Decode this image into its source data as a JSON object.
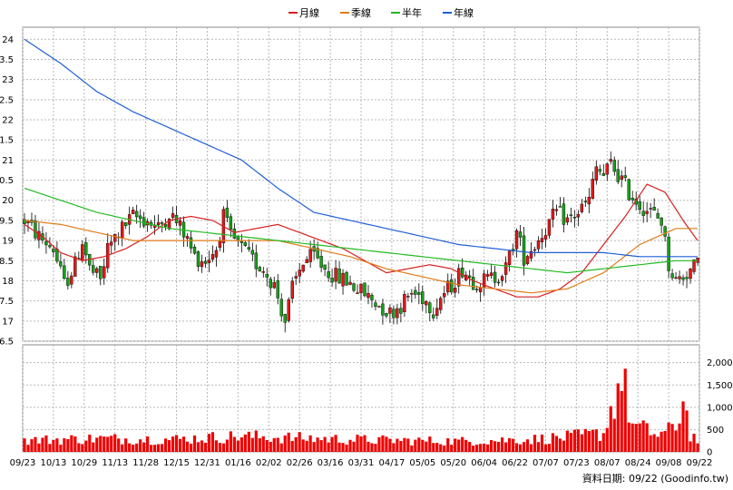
{
  "chart_data": {
    "type": "candlestick-with-volume",
    "legend": {
      "placement": "top-center",
      "items": [
        {
          "label": "月線",
          "color": "#d62020"
        },
        {
          "label": "季線",
          "color": "#e07b1a"
        },
        {
          "label": "半年",
          "color": "#22bb22"
        },
        {
          "label": "年線",
          "color": "#1f5fd6"
        }
      ]
    },
    "price_axis": {
      "tick_labels": [
        "24",
        "23.5",
        "23",
        "22.5",
        "22",
        "21.5",
        "21",
        "20.5",
        "20",
        "19.5",
        "19",
        "18.5",
        "18",
        "17.5",
        "17",
        "16.5"
      ],
      "ylim": [
        16.5,
        24.3
      ],
      "grid": true
    },
    "volume_axis": {
      "tick_labels": [
        "2,000",
        "1,500",
        "1,000",
        "500",
        "0"
      ],
      "ylim": [
        0,
        2400
      ],
      "grid": true
    },
    "x_ticks": [
      "09/23",
      "10/13",
      "10/29",
      "11/13",
      "11/28",
      "12/15",
      "12/31",
      "01/16",
      "02/02",
      "02/26",
      "03/16",
      "03/31",
      "04/17",
      "05/05",
      "05/20",
      "06/04",
      "06/22",
      "07/07",
      "07/23",
      "08/07",
      "08/24",
      "09/08",
      "09/22"
    ],
    "moving_averages": {
      "月線": [
        [
          0,
          19.4
        ],
        [
          5,
          19.1
        ],
        [
          10,
          18.7
        ],
        [
          16,
          18.5
        ],
        [
          22,
          18.6
        ],
        [
          28,
          18.8
        ],
        [
          34,
          19.1
        ],
        [
          40,
          19.5
        ],
        [
          46,
          19.6
        ],
        [
          52,
          19.5
        ],
        [
          58,
          19.2
        ],
        [
          64,
          19.3
        ],
        [
          70,
          19.4
        ],
        [
          76,
          19.2
        ],
        [
          82,
          19.0
        ],
        [
          88,
          18.8
        ],
        [
          94,
          18.5
        ],
        [
          100,
          18.2
        ],
        [
          106,
          18.3
        ],
        [
          112,
          18.4
        ],
        [
          118,
          18.3
        ],
        [
          124,
          18.0
        ],
        [
          130,
          17.8
        ],
        [
          136,
          17.6
        ],
        [
          142,
          17.6
        ],
        [
          148,
          17.8
        ],
        [
          154,
          18.2
        ],
        [
          160,
          18.9
        ],
        [
          166,
          19.6
        ],
        [
          172,
          20.4
        ],
        [
          177,
          20.2
        ],
        [
          182,
          19.5
        ],
        [
          186,
          19.0
        ]
      ],
      "季線": [
        [
          0,
          19.5
        ],
        [
          10,
          19.4
        ],
        [
          20,
          19.2
        ],
        [
          30,
          19.0
        ],
        [
          40,
          19.0
        ],
        [
          50,
          19.0
        ],
        [
          60,
          19.0
        ],
        [
          70,
          19.0
        ],
        [
          80,
          18.8
        ],
        [
          90,
          18.6
        ],
        [
          100,
          18.3
        ],
        [
          110,
          18.1
        ],
        [
          120,
          17.9
        ],
        [
          130,
          17.8
        ],
        [
          140,
          17.7
        ],
        [
          150,
          17.8
        ],
        [
          160,
          18.2
        ],
        [
          170,
          18.9
        ],
        [
          180,
          19.3
        ],
        [
          186,
          19.3
        ]
      ],
      "半年": [
        [
          0,
          20.3
        ],
        [
          10,
          20.0
        ],
        [
          20,
          19.7
        ],
        [
          30,
          19.5
        ],
        [
          40,
          19.3
        ],
        [
          50,
          19.2
        ],
        [
          60,
          19.1
        ],
        [
          70,
          19.0
        ],
        [
          80,
          18.9
        ],
        [
          90,
          18.8
        ],
        [
          100,
          18.7
        ],
        [
          110,
          18.6
        ],
        [
          120,
          18.5
        ],
        [
          130,
          18.4
        ],
        [
          140,
          18.3
        ],
        [
          150,
          18.2
        ],
        [
          160,
          18.3
        ],
        [
          170,
          18.4
        ],
        [
          180,
          18.5
        ],
        [
          186,
          18.5
        ]
      ],
      "年線": [
        [
          0,
          24.0
        ],
        [
          10,
          23.4
        ],
        [
          20,
          22.7
        ],
        [
          30,
          22.2
        ],
        [
          40,
          21.8
        ],
        [
          50,
          21.4
        ],
        [
          60,
          21.0
        ],
        [
          70,
          20.3
        ],
        [
          80,
          19.7
        ],
        [
          90,
          19.5
        ],
        [
          100,
          19.3
        ],
        [
          110,
          19.1
        ],
        [
          120,
          18.9
        ],
        [
          130,
          18.8
        ],
        [
          140,
          18.7
        ],
        [
          150,
          18.7
        ],
        [
          160,
          18.7
        ],
        [
          170,
          18.6
        ],
        [
          180,
          18.6
        ],
        [
          186,
          18.6
        ]
      ]
    },
    "price_path": [
      [
        0,
        19.5
      ],
      [
        4,
        19.1
      ],
      [
        8,
        18.8
      ],
      [
        11,
        17.9
      ],
      [
        14,
        18.4
      ],
      [
        16,
        19.0
      ],
      [
        18,
        18.3
      ],
      [
        21,
        18.0
      ],
      [
        23,
        18.8
      ],
      [
        26,
        19.2
      ],
      [
        30,
        19.6
      ],
      [
        34,
        19.5
      ],
      [
        37,
        19.3
      ],
      [
        40,
        19.7
      ],
      [
        44,
        19.2
      ],
      [
        47,
        18.6
      ],
      [
        50,
        18.5
      ],
      [
        53,
        18.8
      ],
      [
        55,
        19.6
      ],
      [
        57,
        19.1
      ],
      [
        60,
        18.8
      ],
      [
        63,
        18.5
      ],
      [
        66,
        18.3
      ],
      [
        69,
        17.9
      ],
      [
        71,
        17.3
      ],
      [
        72,
        17.0
      ],
      [
        74,
        17.8
      ],
      [
        77,
        18.5
      ],
      [
        80,
        18.6
      ],
      [
        83,
        18.3
      ],
      [
        86,
        18.1
      ],
      [
        89,
        18.0
      ],
      [
        92,
        17.8
      ],
      [
        95,
        17.6
      ],
      [
        98,
        17.4
      ],
      [
        101,
        17.2
      ],
      [
        104,
        17.4
      ],
      [
        107,
        17.7
      ],
      [
        110,
        17.6
      ],
      [
        113,
        17.3
      ],
      [
        115,
        17.6
      ],
      [
        118,
        17.9
      ],
      [
        121,
        18.3
      ],
      [
        124,
        18.0
      ],
      [
        127,
        18.0
      ],
      [
        130,
        18.1
      ],
      [
        133,
        18.3
      ],
      [
        136,
        19.2
      ],
      [
        138,
        18.6
      ],
      [
        141,
        18.9
      ],
      [
        144,
        19.3
      ],
      [
        147,
        19.7
      ],
      [
        150,
        19.5
      ],
      [
        153,
        19.7
      ],
      [
        156,
        20.0
      ],
      [
        158,
        20.8
      ],
      [
        160,
        20.6
      ],
      [
        162,
        20.9
      ],
      [
        165,
        20.5
      ],
      [
        167,
        20.2
      ],
      [
        170,
        19.9
      ],
      [
        173,
        19.7
      ],
      [
        176,
        19.5
      ],
      [
        178,
        18.4
      ],
      [
        180,
        18.0
      ],
      [
        183,
        18.2
      ],
      [
        186,
        18.4
      ]
    ],
    "volume_path": [
      [
        0,
        260
      ],
      [
        20,
        300
      ],
      [
        40,
        280
      ],
      [
        60,
        350
      ],
      [
        80,
        300
      ],
      [
        100,
        260
      ],
      [
        120,
        240
      ],
      [
        140,
        280
      ],
      [
        150,
        330
      ],
      [
        160,
        420
      ],
      [
        165,
        1700
      ],
      [
        168,
        600
      ],
      [
        175,
        380
      ],
      [
        180,
        520
      ],
      [
        182,
        1250
      ],
      [
        184,
        400
      ],
      [
        186,
        260
      ]
    ],
    "bar_count": 187,
    "source": "資料日期: 09/22  (Goodinfo.tw)"
  }
}
